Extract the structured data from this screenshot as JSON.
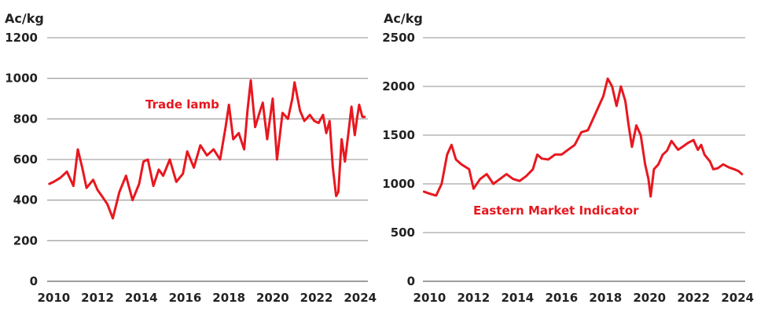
{
  "chart_data": [
    {
      "type": "line",
      "ylabel": "Ac/kg",
      "ylim": [
        0,
        1200
      ],
      "y_ticks": [
        0,
        200,
        400,
        600,
        800,
        1000,
        1200
      ],
      "xlim": [
        2009.7,
        2024.35
      ],
      "x_ticks": [
        "2010",
        "2012",
        "2014",
        "2016",
        "2018",
        "2020",
        "2022",
        "2024"
      ],
      "grid": true,
      "color": "#e8171f",
      "series": [
        {
          "name": "Trade lamb",
          "x": [
            2009.8,
            2010.0,
            2010.3,
            2010.6,
            2010.9,
            2011.1,
            2011.3,
            2011.5,
            2011.8,
            2012.0,
            2012.2,
            2012.45,
            2012.7,
            2013.0,
            2013.3,
            2013.6,
            2013.9,
            2014.1,
            2014.3,
            2014.55,
            2014.8,
            2015.0,
            2015.3,
            2015.6,
            2015.9,
            2016.1,
            2016.4,
            2016.7,
            2017.0,
            2017.3,
            2017.6,
            2017.85,
            2018.0,
            2018.2,
            2018.45,
            2018.7,
            2018.85,
            2019.0,
            2019.2,
            2019.4,
            2019.55,
            2019.75,
            2020.0,
            2020.2,
            2020.45,
            2020.7,
            2020.9,
            2021.0,
            2021.25,
            2021.45,
            2021.7,
            2021.9,
            2022.1,
            2022.3,
            2022.45,
            2022.6,
            2022.75,
            2022.9,
            2023.0,
            2023.15,
            2023.3,
            2023.45,
            2023.6,
            2023.75,
            2023.85,
            2023.95,
            2024.1,
            2024.2
          ],
          "values": [
            480,
            490,
            510,
            540,
            470,
            650,
            560,
            460,
            500,
            450,
            420,
            380,
            310,
            440,
            520,
            400,
            480,
            590,
            600,
            470,
            550,
            520,
            600,
            490,
            530,
            640,
            560,
            670,
            620,
            650,
            600,
            760,
            870,
            700,
            730,
            650,
            840,
            990,
            760,
            830,
            880,
            700,
            900,
            600,
            830,
            800,
            900,
            980,
            840,
            790,
            820,
            790,
            780,
            820,
            730,
            790,
            560,
            420,
            440,
            700,
            590,
            720,
            860,
            720,
            800,
            870,
            810,
            810
          ]
        }
      ]
    },
    {
      "type": "line",
      "ylabel": "Ac/kg",
      "ylim": [
        0,
        2500
      ],
      "y_ticks": [
        0,
        500,
        1000,
        1500,
        2000,
        2500
      ],
      "xlim": [
        2009.7,
        2024.35
      ],
      "x_ticks": [
        "2010",
        "2012",
        "2014",
        "2016",
        "2018",
        "2020",
        "2022",
        "2024"
      ],
      "grid": true,
      "color": "#e8171f",
      "series": [
        {
          "name": "Eastern Market Indicator",
          "x": [
            2009.75,
            2010.0,
            2010.3,
            2010.55,
            2010.8,
            2011.0,
            2011.2,
            2011.45,
            2011.8,
            2012.0,
            2012.3,
            2012.6,
            2012.9,
            2013.2,
            2013.5,
            2013.8,
            2014.1,
            2014.4,
            2014.7,
            2014.9,
            2015.1,
            2015.4,
            2015.7,
            2016.0,
            2016.3,
            2016.6,
            2016.9,
            2017.2,
            2017.5,
            2017.7,
            2017.9,
            2018.1,
            2018.3,
            2018.5,
            2018.7,
            2018.9,
            2019.05,
            2019.2,
            2019.4,
            2019.6,
            2019.8,
            2019.95,
            2020.05,
            2020.2,
            2020.4,
            2020.6,
            2020.8,
            2021.0,
            2021.3,
            2021.5,
            2021.75,
            2022.0,
            2022.2,
            2022.35,
            2022.5,
            2022.75,
            2022.9,
            2023.1,
            2023.35,
            2023.6,
            2023.85,
            2024.05,
            2024.2
          ],
          "values": [
            920,
            900,
            880,
            1000,
            1300,
            1400,
            1250,
            1200,
            1150,
            950,
            1050,
            1100,
            1000,
            1050,
            1100,
            1050,
            1030,
            1080,
            1150,
            1300,
            1260,
            1250,
            1300,
            1300,
            1350,
            1400,
            1530,
            1550,
            1700,
            1800,
            1900,
            2080,
            2000,
            1800,
            2000,
            1850,
            1600,
            1380,
            1600,
            1500,
            1200,
            1050,
            870,
            1150,
            1200,
            1300,
            1340,
            1440,
            1350,
            1380,
            1420,
            1450,
            1350,
            1400,
            1300,
            1230,
            1150,
            1160,
            1200,
            1170,
            1150,
            1130,
            1100
          ]
        }
      ]
    }
  ]
}
